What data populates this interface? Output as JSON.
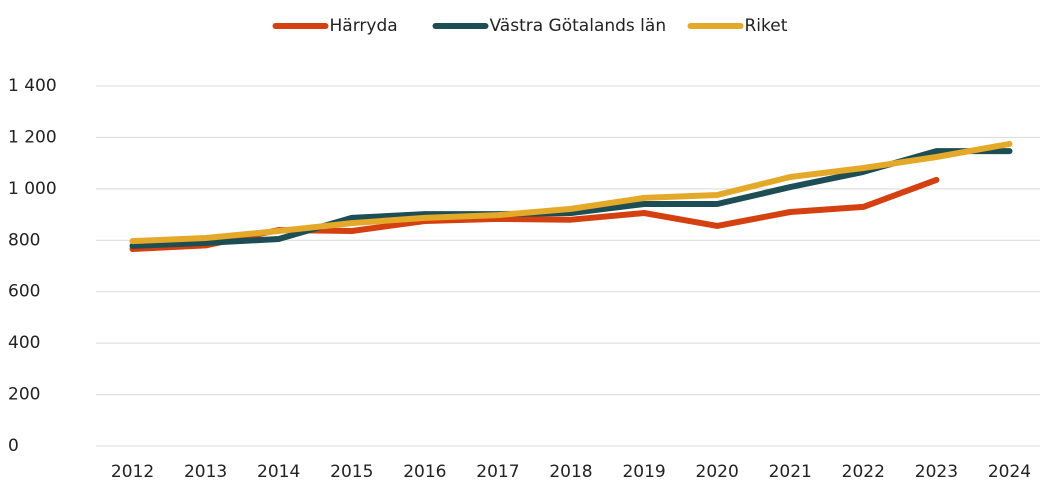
{
  "chart_data": {
    "type": "line",
    "x": [
      "2012",
      "2013",
      "2014",
      "2015",
      "2016",
      "2017",
      "2018",
      "2019",
      "2020",
      "2021",
      "2022",
      "2023",
      "2024"
    ],
    "series": [
      {
        "name": "Härryda",
        "color": "#d4400f",
        "values": [
          766,
          780,
          840,
          836,
          875,
          883,
          880,
          906,
          856,
          910,
          930,
          1035,
          null
        ]
      },
      {
        "name": "Västra Götalands län",
        "color": "#1d4e55",
        "values": [
          778,
          790,
          805,
          887,
          902,
          902,
          906,
          941,
          941,
          1007,
          1066,
          1147,
          1147
        ]
      },
      {
        "name": "Riket",
        "color": "#e5a92a",
        "values": [
          797,
          809,
          836,
          867,
          887,
          898,
          922,
          965,
          976,
          1046,
          1081,
          1124,
          1175
        ]
      }
    ],
    "ylim": [
      0,
      1400
    ],
    "yticks": [
      0,
      200,
      400,
      600,
      800,
      {
        "value": 1000,
        "label": "1 000"
      },
      {
        "value": 1200,
        "label": "1 200"
      },
      {
        "value": 1400,
        "label": "1 400"
      }
    ],
    "grid": true,
    "legend": "top"
  }
}
